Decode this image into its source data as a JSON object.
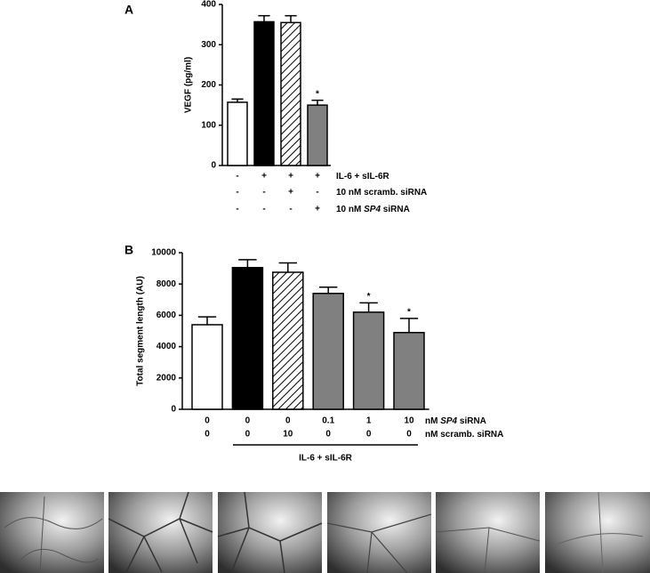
{
  "chart_data": [
    {
      "type": "bar",
      "panel": "A",
      "ylabel": "VEGF (pg/ml)",
      "values": [
        157,
        357,
        355,
        150
      ],
      "errors": [
        8,
        15,
        17,
        12
      ],
      "colors": [
        "#ffffff",
        "#000000",
        "#ffffff",
        "#808080"
      ],
      "hatched": [
        false,
        false,
        true,
        false
      ],
      "significance": [
        null,
        null,
        null,
        "*"
      ],
      "ylim": [
        0,
        400
      ],
      "yticks": [
        0,
        100,
        200,
        300,
        400
      ],
      "conditions": [
        {
          "label": [
            "IL-6 + sIL-6R"
          ],
          "marks": [
            "-",
            "+",
            "+",
            "+"
          ]
        },
        {
          "label": [
            "10 nM scramb. siRNA"
          ],
          "marks": [
            "-",
            "-",
            "+",
            "-"
          ]
        },
        {
          "label": [
            "10 nM ",
            "SP4",
            " siRNA"
          ],
          "marks": [
            "-",
            "-",
            "-",
            "+"
          ]
        }
      ]
    },
    {
      "type": "bar",
      "panel": "B",
      "ylabel": "Total segment length (AU)",
      "values": [
        5400,
        9050,
        8750,
        7400,
        6200,
        4900
      ],
      "errors": [
        500,
        500,
        600,
        400,
        600,
        900
      ],
      "colors": [
        "#ffffff",
        "#000000",
        "#ffffff",
        "#808080",
        "#808080",
        "#808080"
      ],
      "hatched": [
        false,
        false,
        true,
        false,
        false,
        false
      ],
      "significance": [
        null,
        null,
        null,
        null,
        "*",
        "*"
      ],
      "ylim": [
        0,
        10000
      ],
      "yticks": [
        0,
        2000,
        4000,
        6000,
        8000,
        10000
      ],
      "conditions": [
        {
          "label": [
            "nM ",
            "SP4",
            " siRNA"
          ],
          "marks": [
            "0",
            "0",
            "0",
            "0.1",
            "1",
            "10"
          ]
        },
        {
          "label": [
            "nM scramb. siRNA"
          ],
          "marks": [
            "0",
            "0",
            "10",
            "0",
            "0",
            "0"
          ]
        }
      ],
      "bracket_label": "IL-6 + sIL-6R"
    }
  ]
}
